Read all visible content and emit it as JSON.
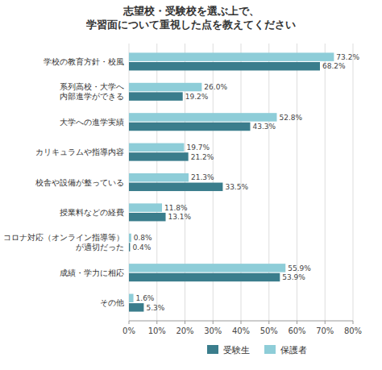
{
  "chart_data": {
    "type": "bar",
    "orientation": "horizontal",
    "title": "志望校・受験校を選ぶ上で、\n学習面について重視した点を教えてください",
    "categories": [
      "学校の教育方針・校風",
      "系列高校・大学へ\n内部進学ができる",
      "大学への進学実績",
      "カリキュラムや指導内容",
      "校舎や設備が整っている",
      "授業料などの経費",
      "コロナ対応（オンライン指導等）\nが適切だった",
      "成績・学力に相応",
      "その他"
    ],
    "series": [
      {
        "name": "受験生",
        "color": "#3a7d8c",
        "values": [
          68.2,
          19.2,
          43.3,
          21.2,
          33.5,
          13.1,
          0.4,
          53.9,
          5.3
        ],
        "value_labels": [
          "68.2%",
          "19.2%",
          "43.3%",
          "21.2%",
          "33.5%",
          "13.1%",
          "0.4%",
          "53.9%",
          "5.3%"
        ]
      },
      {
        "name": "保護者",
        "color": "#8ecdd8",
        "values": [
          73.2,
          26.0,
          52.8,
          19.7,
          21.3,
          11.8,
          0.8,
          55.9,
          1.6
        ],
        "value_labels": [
          "73.2%",
          "26.0%",
          "52.8%",
          "19.7%",
          "21.3%",
          "11.8%",
          "0.8%",
          "55.9%",
          "1.6%"
        ]
      }
    ],
    "xlim": [
      0,
      80
    ],
    "xticks": [
      {
        "value": 0,
        "label": "0%"
      },
      {
        "value": 10,
        "label": "10%"
      },
      {
        "value": 20,
        "label": "20%"
      },
      {
        "value": 30,
        "label": "30%"
      },
      {
        "value": 40,
        "label": "40%"
      },
      {
        "value": 50,
        "label": "50%"
      },
      {
        "value": 60,
        "label": "60%"
      },
      {
        "value": 70,
        "label": "70%"
      },
      {
        "value": 80,
        "label": "80%"
      }
    ],
    "grid": true,
    "data_labels": true,
    "legend": "bottom"
  }
}
